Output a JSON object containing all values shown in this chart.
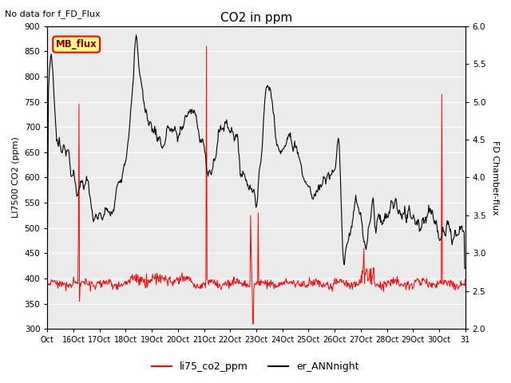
{
  "title": "CO2 in ppm",
  "no_data_text": "No data for f_FD_Flux",
  "mb_flux_label": "MB_flux",
  "ylabel_left": "LI7500 CO2 (ppm)",
  "ylabel_right": "FD Chamber-flux",
  "ylim_left": [
    300,
    900
  ],
  "ylim_right": [
    2.0,
    6.0
  ],
  "yticks_left": [
    300,
    350,
    400,
    450,
    500,
    550,
    600,
    650,
    700,
    750,
    800,
    850,
    900
  ],
  "yticks_right": [
    2.0,
    2.5,
    3.0,
    3.5,
    4.0,
    4.5,
    5.0,
    5.5,
    6.0
  ],
  "xtick_labels": [
    "Oct",
    "16Oct",
    "17Oct",
    "18Oct",
    "19Oct",
    "20Oct",
    "21Oct",
    "22Oct",
    "23Oct",
    "24Oct",
    "25Oct",
    "26Oct",
    "27Oct",
    "28Oct",
    "29Oct",
    "30Oct",
    "31"
  ],
  "legend_labels": [
    "li75_co2_ppm",
    "er_ANNnight"
  ],
  "line_colors": [
    "red",
    "black"
  ],
  "plot_bg_color": "#ebebeb"
}
